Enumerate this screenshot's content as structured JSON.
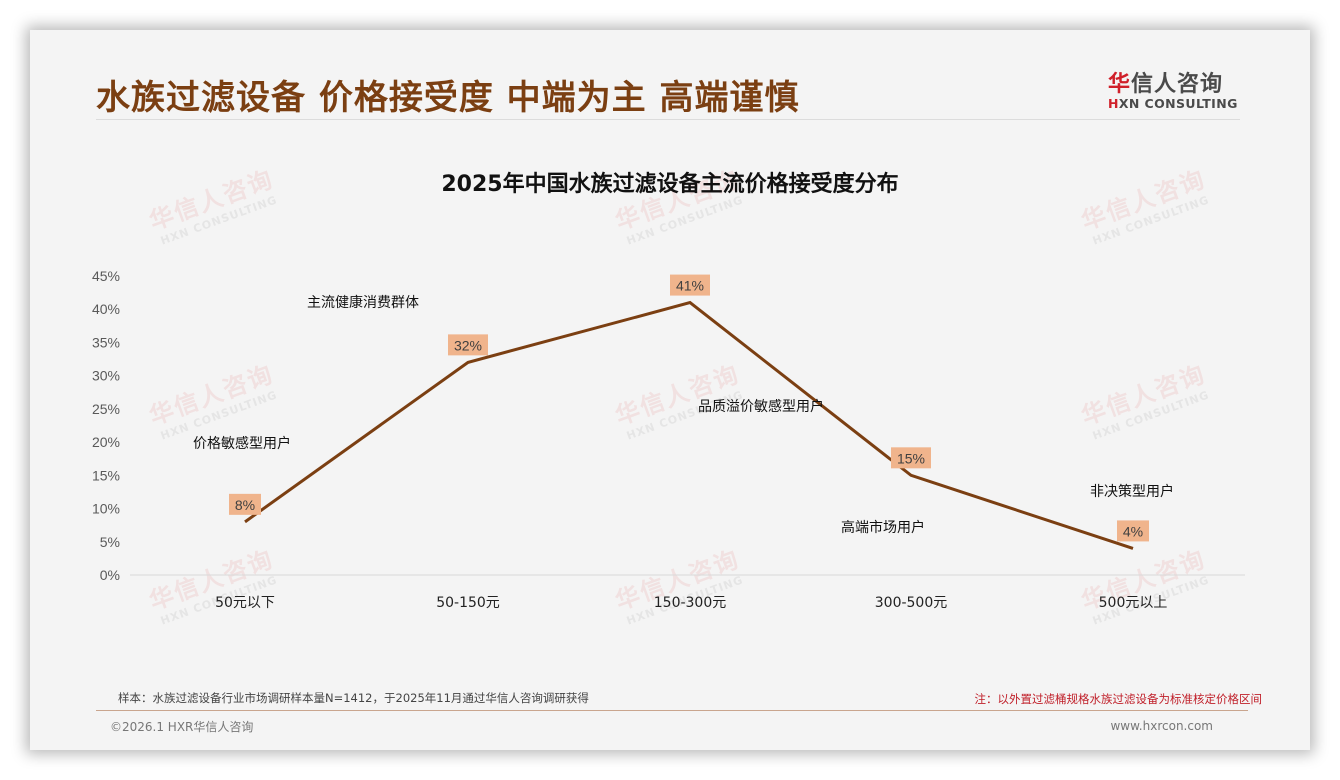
{
  "page": {
    "title": "水族过滤设备 价格接受度 中端为主 高端谨慎",
    "logo": {
      "cn_first": "华",
      "cn_rest": "信人咨询",
      "en_first": "H",
      "en_rest": "XN CONSULTING"
    },
    "watermark": {
      "cn": "华信人咨询",
      "en": "HXN CONSULTING"
    }
  },
  "chart_data": {
    "type": "line",
    "title": "2025年中国水族过滤设备主流价格接受度分布",
    "categories": [
      "50元以下",
      "50-150元",
      "150-300元",
      "300-500元",
      "500元以上"
    ],
    "values": [
      8,
      32,
      41,
      15,
      4
    ],
    "value_labels": [
      "8%",
      "32%",
      "41%",
      "15%",
      "4%"
    ],
    "yticks": [
      "0%",
      "5%",
      "10%",
      "15%",
      "20%",
      "25%",
      "30%",
      "35%",
      "40%",
      "45%"
    ],
    "ylim": [
      0,
      45
    ],
    "xlabel": "",
    "ylabel": "",
    "grid": false,
    "legend": null,
    "line_color": "#7b3f12",
    "label_bg_color": "#f0b48c",
    "annotations": [
      {
        "text": "价格敏感型用户",
        "near": "50元以下"
      },
      {
        "text": "主流健康消费群体",
        "near": "50-150元"
      },
      {
        "text": "品质溢价敏感型用户",
        "near": "150-300元"
      },
      {
        "text": "高端市场用户",
        "near": "300-500元"
      },
      {
        "text": "非决策型用户",
        "near": "500元以上"
      }
    ]
  },
  "footer": {
    "sample_note": "样本：水族过滤设备行业市场调研样本量N=1412，于2025年11月通过华信人咨询调研获得",
    "price_note": "注：以外置过滤桶规格水族过滤设备为标准核定价格区间",
    "copyright": "©2026.1 HXR华信人咨询",
    "website": "www.hxrcon.com"
  }
}
